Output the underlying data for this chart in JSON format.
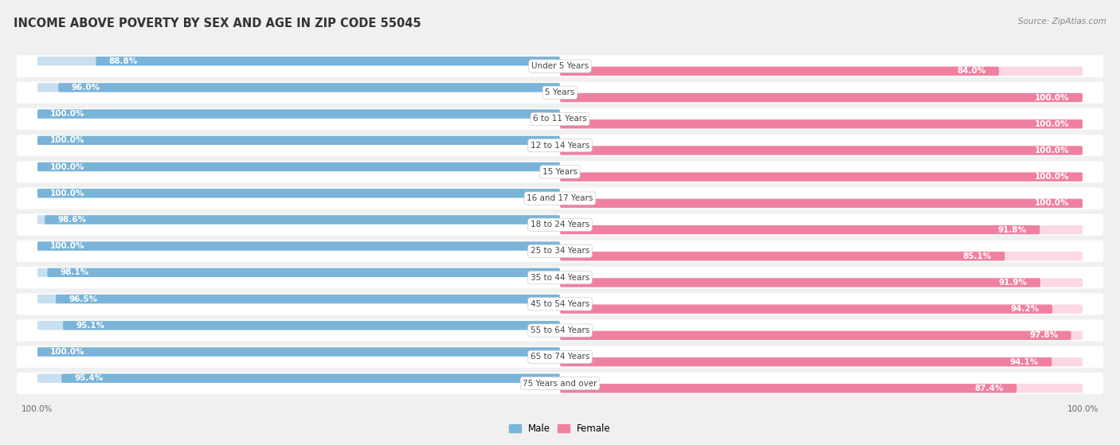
{
  "title": "INCOME ABOVE POVERTY BY SEX AND AGE IN ZIP CODE 55045",
  "source": "Source: ZipAtlas.com",
  "categories": [
    "Under 5 Years",
    "5 Years",
    "6 to 11 Years",
    "12 to 14 Years",
    "15 Years",
    "16 and 17 Years",
    "18 to 24 Years",
    "25 to 34 Years",
    "35 to 44 Years",
    "45 to 54 Years",
    "55 to 64 Years",
    "65 to 74 Years",
    "75 Years and over"
  ],
  "male": [
    88.8,
    96.0,
    100.0,
    100.0,
    100.0,
    100.0,
    98.6,
    100.0,
    98.1,
    96.5,
    95.1,
    100.0,
    95.4
  ],
  "female": [
    84.0,
    100.0,
    100.0,
    100.0,
    100.0,
    100.0,
    91.8,
    85.1,
    91.9,
    94.2,
    97.8,
    94.1,
    87.4
  ],
  "male_color": "#7ab4d8",
  "female_color": "#f080a0",
  "male_label": "Male",
  "female_label": "Female",
  "background_color": "#f0f0f0",
  "row_color_odd": "#e8e8ec",
  "row_color_even": "#f4f4f8",
  "title_fontsize": 10.5,
  "label_fontsize": 7.5,
  "value_fontsize": 7.5,
  "source_fontsize": 7.5,
  "xlim_left": -100,
  "xlim_right": 100
}
